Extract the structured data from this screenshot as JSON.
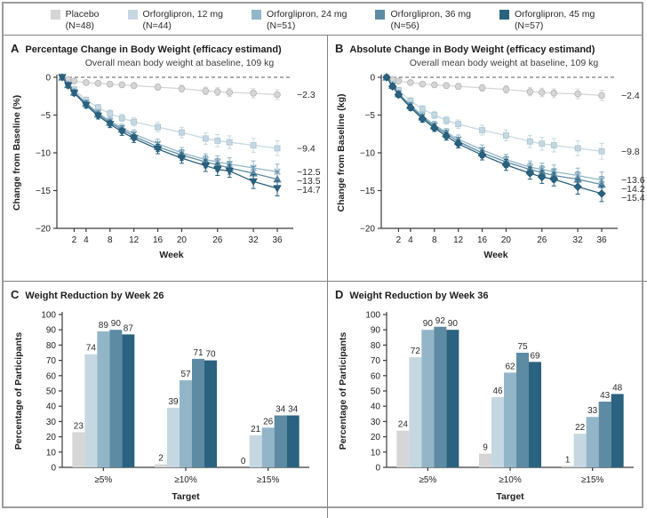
{
  "legend": {
    "items": [
      {
        "label": "Placebo",
        "n": "(N=48)",
        "color": "#d6d6d6",
        "stroke": "#b3b3b3"
      },
      {
        "label": "Orforglipron, 12 mg",
        "n": "(N=44)",
        "color": "#c5d8e2",
        "stroke": "#a9c4d3"
      },
      {
        "label": "Orforglipron, 24 mg",
        "n": "(N=51)",
        "color": "#92b6c8",
        "stroke": "#7ea7bb"
      },
      {
        "label": "Orforglipron, 36 mg",
        "n": "(N=56)",
        "color": "#5d8ba3",
        "stroke": "#4f7d96"
      },
      {
        "label": "Orforglipron, 45 mg",
        "n": "(N=57)",
        "color": "#2a627f",
        "stroke": "#1f5472"
      }
    ]
  },
  "chart_data": [
    {
      "id": "panel-a",
      "type": "line",
      "letter": "A",
      "title": "Percentage Change in Body Weight (efficacy estimand)",
      "annotation": "Overall mean body weight at baseline, 109 kg",
      "xlabel": "Week",
      "ylabel": "Change from Baseline (%)",
      "ylim": [
        -20,
        0
      ],
      "yticks": [
        0,
        -5,
        -10,
        -15,
        -20
      ],
      "xticks": [
        2,
        4,
        8,
        12,
        16,
        20,
        26,
        32,
        36
      ],
      "x": [
        0,
        1,
        2,
        4,
        6,
        8,
        10,
        12,
        16,
        20,
        24,
        26,
        28,
        32,
        36
      ],
      "series": [
        {
          "name": "Placebo",
          "marker": "circle",
          "se_end": 0.65,
          "end_label": "−2.3",
          "values": [
            0,
            -0.3,
            -0.5,
            -0.7,
            -0.8,
            -0.9,
            -1.0,
            -1.1,
            -1.3,
            -1.5,
            -1.8,
            -1.9,
            -2.0,
            -2.1,
            -2.3
          ]
        },
        {
          "name": "Orforglipron, 12 mg",
          "marker": "square",
          "se_end": 1.0,
          "end_label": "−9.4",
          "values": [
            0,
            -0.9,
            -1.6,
            -3.0,
            -4.0,
            -4.8,
            -5.4,
            -5.9,
            -6.6,
            -7.3,
            -8.1,
            -8.4,
            -8.6,
            -9.0,
            -9.4
          ]
        },
        {
          "name": "Orforglipron, 24 mg",
          "marker": "x",
          "se_end": 1.0,
          "end_label": "−12.5",
          "values": [
            0,
            -1.0,
            -1.9,
            -3.4,
            -4.7,
            -5.8,
            -6.7,
            -7.5,
            -8.8,
            -10.0,
            -10.9,
            -11.2,
            -11.5,
            -12.0,
            -12.5
          ]
        },
        {
          "name": "Orforglipron, 36 mg",
          "marker": "triangle-up",
          "se_end": 1.0,
          "end_label": "−13.5",
          "values": [
            0,
            -1.0,
            -2.0,
            -3.5,
            -4.9,
            -6.0,
            -6.9,
            -7.8,
            -9.2,
            -10.3,
            -11.2,
            -11.6,
            -12.0,
            -12.7,
            -13.5
          ]
        },
        {
          "name": "Orforglipron, 45 mg",
          "marker": "triangle-down",
          "se_end": 1.0,
          "end_label": "−14.7",
          "values": [
            0,
            -1.1,
            -2.1,
            -3.7,
            -5.1,
            -6.2,
            -7.2,
            -8.1,
            -9.5,
            -10.7,
            -11.7,
            -12.2,
            -12.4,
            -13.8,
            -14.7
          ]
        }
      ]
    },
    {
      "id": "panel-b",
      "type": "line",
      "letter": "B",
      "title": "Absolute Change in Body Weight (efficacy estimand)",
      "annotation": "Overall mean body weight at baseline, 109 kg",
      "xlabel": "Week",
      "ylabel": "Change from Baseline (kg)",
      "ylim": [
        -20,
        0
      ],
      "yticks": [
        0,
        -5,
        -10,
        -15,
        -20
      ],
      "xticks": [
        2,
        4,
        8,
        12,
        16,
        20,
        26,
        32,
        36
      ],
      "x": [
        0,
        1,
        2,
        4,
        6,
        8,
        10,
        12,
        16,
        20,
        24,
        26,
        28,
        32,
        36
      ],
      "series": [
        {
          "name": "Placebo",
          "marker": "circle",
          "se_end": 0.7,
          "end_label": "−2.4",
          "values": [
            0,
            -0.3,
            -0.5,
            -0.7,
            -0.9,
            -1.0,
            -1.1,
            -1.2,
            -1.4,
            -1.6,
            -1.9,
            -2.0,
            -2.1,
            -2.2,
            -2.4
          ]
        },
        {
          "name": "Orforglipron, 12 mg",
          "marker": "square",
          "se_end": 1.05,
          "end_label": "−9.8",
          "values": [
            0,
            -0.9,
            -1.7,
            -3.1,
            -4.2,
            -5.0,
            -5.7,
            -6.2,
            -7.0,
            -7.7,
            -8.5,
            -8.8,
            -9.0,
            -9.4,
            -9.8
          ]
        },
        {
          "name": "Orforglipron, 24 mg",
          "marker": "x",
          "se_end": 1.05,
          "end_label": "−13.6",
          "values": [
            0,
            -1.1,
            -2.1,
            -3.7,
            -5.1,
            -6.3,
            -7.3,
            -8.2,
            -9.6,
            -10.9,
            -11.9,
            -12.2,
            -12.5,
            -13.0,
            -13.6
          ]
        },
        {
          "name": "Orforglipron, 36 mg",
          "marker": "triangle-up",
          "se_end": 1.05,
          "end_label": "−14.2",
          "values": [
            0,
            -1.1,
            -2.2,
            -3.8,
            -5.3,
            -6.5,
            -7.5,
            -8.5,
            -10.0,
            -11.2,
            -12.2,
            -12.6,
            -13.0,
            -13.5,
            -14.2
          ]
        },
        {
          "name": "Orforglipron, 45 mg",
          "marker": "diamond",
          "se_end": 1.05,
          "end_label": "−15.4",
          "values": [
            0,
            -1.2,
            -2.3,
            -4.0,
            -5.5,
            -6.7,
            -7.8,
            -8.8,
            -10.3,
            -11.6,
            -12.7,
            -13.2,
            -13.5,
            -14.5,
            -15.4
          ]
        }
      ]
    },
    {
      "id": "panel-c",
      "type": "bar",
      "letter": "C",
      "title": "Weight Reduction by Week 26",
      "xlabel": "Target",
      "ylabel": "Percentage of Participants",
      "ylim": [
        0,
        100
      ],
      "yticks": [
        0,
        10,
        20,
        30,
        40,
        50,
        60,
        70,
        80,
        90,
        100
      ],
      "categories": [
        "≥5%",
        "≥10%",
        "≥15%"
      ],
      "series": [
        {
          "name": "Placebo",
          "values": [
            23,
            2,
            0
          ]
        },
        {
          "name": "Orforglipron, 12 mg",
          "values": [
            74,
            39,
            21
          ]
        },
        {
          "name": "Orforglipron, 24 mg",
          "values": [
            89,
            57,
            26
          ]
        },
        {
          "name": "Orforglipron, 36 mg",
          "values": [
            90,
            71,
            34
          ]
        },
        {
          "name": "Orforglipron, 45 mg",
          "values": [
            87,
            70,
            34
          ]
        }
      ]
    },
    {
      "id": "panel-d",
      "type": "bar",
      "letter": "D",
      "title": "Weight Reduction by Week 36",
      "xlabel": "Target",
      "ylabel": "Percentage of Participants",
      "ylim": [
        0,
        100
      ],
      "yticks": [
        0,
        10,
        20,
        30,
        40,
        50,
        60,
        70,
        80,
        90,
        100
      ],
      "categories": [
        "≥5%",
        "≥10%",
        "≥15%"
      ],
      "series": [
        {
          "name": "Placebo",
          "values": [
            24,
            9,
            1
          ]
        },
        {
          "name": "Orforglipron, 12 mg",
          "values": [
            72,
            46,
            22
          ]
        },
        {
          "name": "Orforglipron, 24 mg",
          "values": [
            90,
            62,
            33
          ]
        },
        {
          "name": "Orforglipron, 36 mg",
          "values": [
            92,
            75,
            43
          ]
        },
        {
          "name": "Orforglipron, 45 mg",
          "values": [
            90,
            69,
            48
          ]
        }
      ]
    }
  ]
}
